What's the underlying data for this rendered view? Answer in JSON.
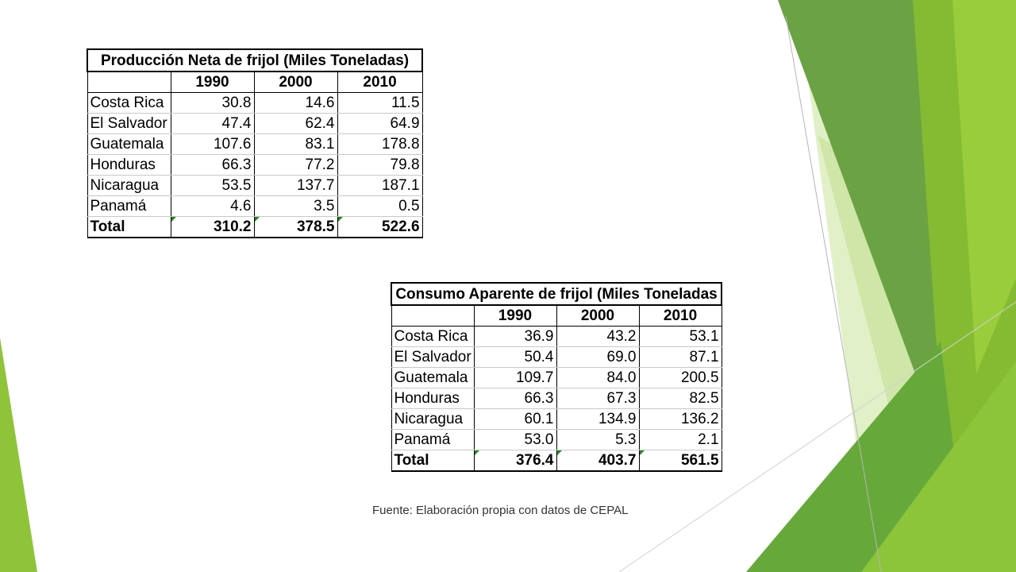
{
  "tables": [
    {
      "title": "Producción Neta de frijol (Miles Toneladas)",
      "years": [
        "1990",
        "2000",
        "2010"
      ],
      "rows": [
        {
          "country": "Costa Rica",
          "values": [
            "30.8",
            "14.6",
            "11.5"
          ]
        },
        {
          "country": "El Salvador",
          "values": [
            "47.4",
            "62.4",
            "64.9"
          ]
        },
        {
          "country": "Guatemala",
          "values": [
            "107.6",
            "83.1",
            "178.8"
          ]
        },
        {
          "country": "Honduras",
          "values": [
            "66.3",
            "77.2",
            "79.8"
          ]
        },
        {
          "country": "Nicaragua",
          "values": [
            "53.5",
            "137.7",
            "187.1"
          ]
        },
        {
          "country": "Panamá",
          "values": [
            "4.6",
            "3.5",
            "0.5"
          ]
        }
      ],
      "total": {
        "label": "Total",
        "values": [
          "310.2",
          "378.5",
          "522.6"
        ]
      }
    },
    {
      "title": "Consumo Aparente de frijol (Miles Toneladas",
      "years": [
        "1990",
        "2000",
        "2010"
      ],
      "rows": [
        {
          "country": "Costa Rica",
          "values": [
            "36.9",
            "43.2",
            "53.1"
          ]
        },
        {
          "country": "El Salvador",
          "values": [
            "50.4",
            "69.0",
            "87.1"
          ]
        },
        {
          "country": "Guatemala",
          "values": [
            "109.7",
            "84.0",
            "200.5"
          ]
        },
        {
          "country": "Honduras",
          "values": [
            "66.3",
            "67.3",
            "82.5"
          ]
        },
        {
          "country": "Nicaragua",
          "values": [
            "60.1",
            "134.9",
            "136.2"
          ]
        },
        {
          "country": "Panamá",
          "values": [
            "53.0",
            "5.3",
            "2.1"
          ]
        }
      ],
      "total": {
        "label": "Total",
        "values": [
          "376.4",
          "403.7",
          "561.5"
        ]
      }
    }
  ],
  "source_note": "Fuente: Elaboración propia con datos de CEPAL",
  "colors": {
    "accent_light": "#c8e3a0",
    "accent_mid": "#8fc43a",
    "accent_dark": "#5e9a32"
  }
}
